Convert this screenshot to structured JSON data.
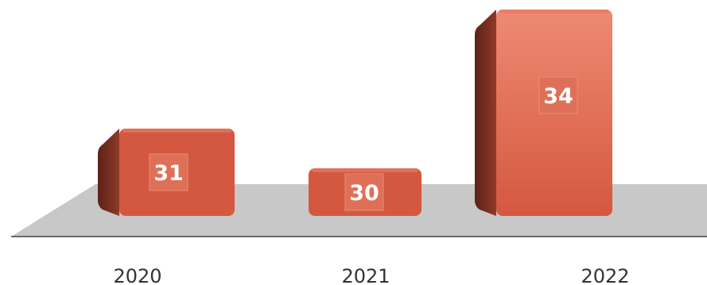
{
  "chart_data": {
    "type": "bar",
    "categories": [
      "2020",
      "2021",
      "2022"
    ],
    "values": [
      31,
      30,
      34
    ],
    "title": "",
    "xlabel": "",
    "ylabel": "",
    "legend": "none",
    "grid": false,
    "data_labels": true,
    "style": "3d-columns",
    "colors": {
      "bar_front": "#d4583f",
      "bar_front_light": "#ee8a72",
      "bar_side": "#7a2e20",
      "bar_top": "#e67a63",
      "label_box": "#de7058",
      "floor": "#c8c8c8",
      "axis": "#444444",
      "text": "#333333"
    }
  }
}
